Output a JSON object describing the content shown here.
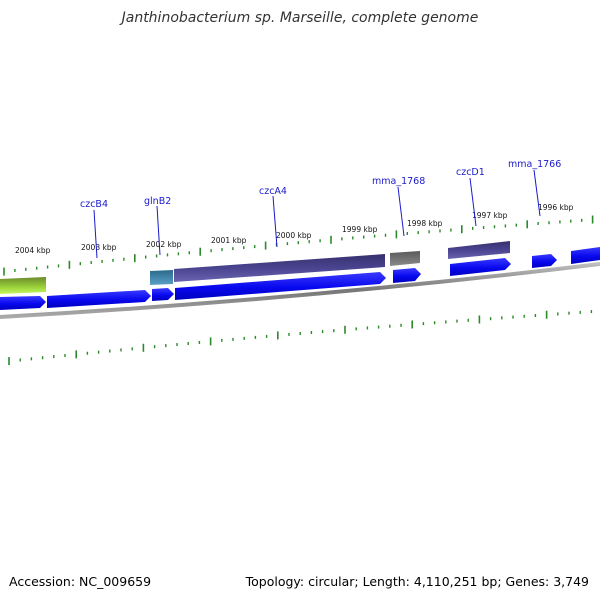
{
  "title": "Janthinobacterium sp. Marseille, complete genome",
  "footer": {
    "accession": "Accession: NC_009659",
    "summary": "Topology: circular; Length: 4,110,251 bp; Genes: 3,749"
  },
  "colors": {
    "tick": "#2a8a2a",
    "gene_label": "#1a1acc",
    "cds": "#0a0af0",
    "region": "#48408a",
    "backbone": "#8a8a8a"
  },
  "ruler_labels": [
    "2004 kbp",
    "2003 kbp",
    "2002 kbp",
    "2001 kbp",
    "2000 kbp",
    "1999 kbp",
    "1998 kbp",
    "1997 kbp",
    "1996 kbp"
  ],
  "gene_labels": [
    "czcB4",
    "glnB2",
    "czcA4",
    "mma_1768",
    "czcD1",
    "mma_1766"
  ]
}
